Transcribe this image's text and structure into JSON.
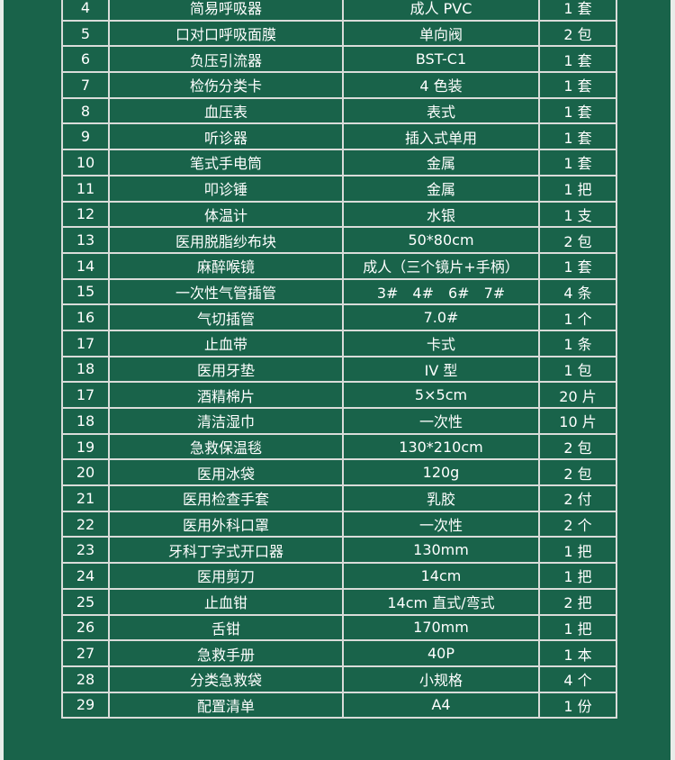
{
  "rows": [
    [
      "4",
      "简易呼吸器",
      "成人 PVC",
      "1 套"
    ],
    [
      "5",
      "口对口呼吸面膜",
      "单向阀",
      "2 包"
    ],
    [
      "6",
      "负压引流器",
      "BST-C1",
      "1 套"
    ],
    [
      "7",
      "检伤分类卡",
      "4 色装",
      "1 套"
    ],
    [
      "8",
      "血压表",
      "表式",
      "1 套"
    ],
    [
      "9",
      "听诊器",
      "插入式单用",
      "1 套"
    ],
    [
      "10",
      "笔式手电筒",
      "金属",
      "1 套"
    ],
    [
      "11",
      "叩诊锤",
      "金属",
      "1 把"
    ],
    [
      "12",
      "体温计",
      "水银",
      "1 支"
    ],
    [
      "13",
      "医用脱脂纱布块",
      "50*80cm",
      "2 包"
    ],
    [
      "14",
      "麻醉喉镜",
      "成人（三个镜片+手柄）",
      "1 套"
    ],
    [
      "15",
      "一次性气管插管",
      "3#　4#　6#　7#",
      "4 条"
    ],
    [
      "16",
      "气切插管",
      "7.0#",
      "1 个"
    ],
    [
      "17",
      "止血带",
      "卡式",
      "1 条"
    ],
    [
      "18",
      "医用牙垫",
      "IV 型",
      "1 包"
    ],
    [
      "17",
      "酒精棉片",
      "5×5cm",
      "20 片"
    ],
    [
      "18",
      "清洁湿巾",
      "一次性",
      "10 片"
    ],
    [
      "19",
      "急救保温毯",
      "130*210cm",
      "2 包"
    ],
    [
      "20",
      "医用冰袋",
      "120g",
      "2 包"
    ],
    [
      "21",
      "医用检查手套",
      "乳胶",
      "2 付"
    ],
    [
      "22",
      "医用外科口罩",
      "一次性",
      "2 个"
    ],
    [
      "23",
      "牙科丁字式开口器",
      "130mm",
      "1 把"
    ],
    [
      "24",
      "医用剪刀",
      "14cm",
      "1 把"
    ],
    [
      "25",
      "止血钳",
      "14cm 直式/弯式",
      "2 把"
    ],
    [
      "26",
      "舌钳",
      "170mm",
      "1 把"
    ],
    [
      "27",
      "急救手册",
      "40P",
      "1 本"
    ],
    [
      "28",
      "分类急救袋",
      "小规格",
      "4 个"
    ],
    [
      "29",
      "配置清单",
      "A4",
      "1 份"
    ]
  ],
  "colors": {
    "background": "#19634a",
    "grid": "#d9dcd9",
    "text": "#ffffff"
  }
}
